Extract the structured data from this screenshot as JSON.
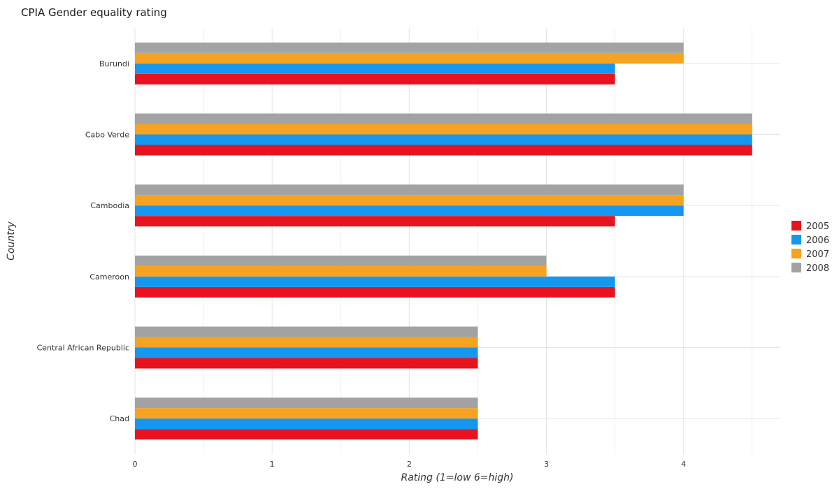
{
  "chart_data": {
    "type": "bar",
    "orientation": "horizontal",
    "title": "CPIA Gender equality rating",
    "xlabel": "Rating (1=low 6=high)",
    "ylabel": "Country",
    "xlim": [
      0,
      4.7
    ],
    "xticks": [
      0,
      1,
      2,
      3,
      4
    ],
    "xtick_labels": [
      "0",
      "1",
      "2",
      "3",
      "4"
    ],
    "grid": true,
    "legend_position": "right",
    "categories": [
      "Burundi",
      "Cabo Verde",
      "Cambodia",
      "Cameroon",
      "Central African Republic",
      "Chad"
    ],
    "series": [
      {
        "name": "2005",
        "color": "#e8131f",
        "values": [
          3.5,
          4.5,
          3.5,
          3.5,
          2.5,
          2.5
        ]
      },
      {
        "name": "2006",
        "color": "#1597f0",
        "values": [
          3.5,
          4.5,
          4.0,
          3.5,
          2.5,
          2.5
        ]
      },
      {
        "name": "2007",
        "color": "#f5a320",
        "values": [
          4.0,
          4.5,
          4.0,
          3.0,
          2.5,
          2.5
        ]
      },
      {
        "name": "2008",
        "color": "#a3a3a3",
        "values": [
          4.0,
          4.5,
          4.0,
          3.0,
          2.5,
          2.5
        ]
      }
    ]
  }
}
